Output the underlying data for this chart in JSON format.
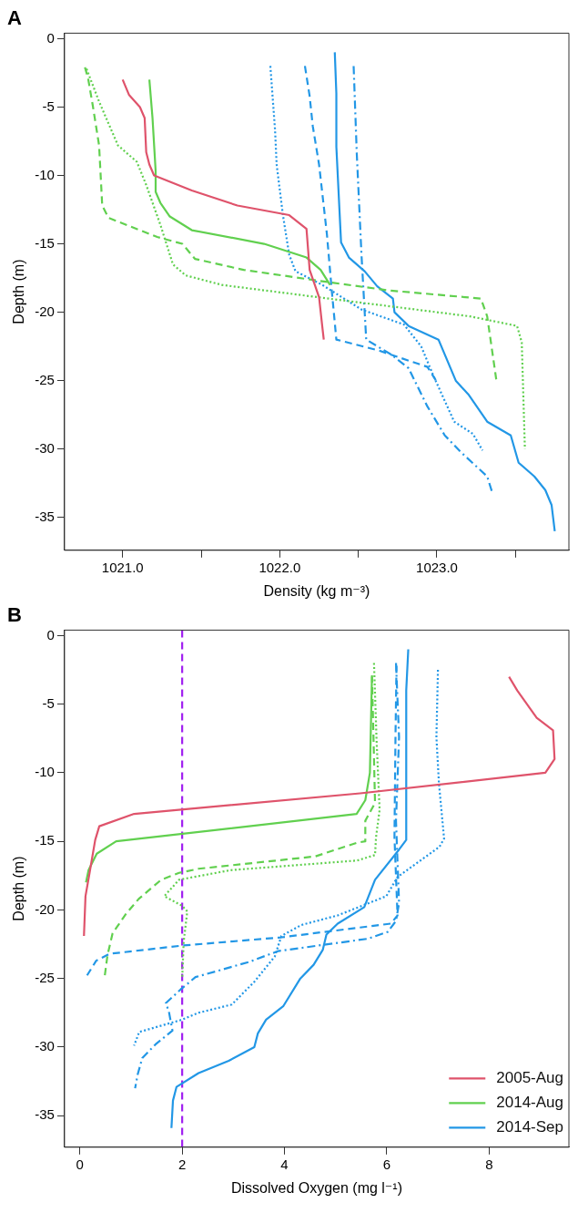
{
  "chart_data": [
    {
      "type": "line",
      "title": "A",
      "xlabel": "Density (kg m⁻³)",
      "ylabel": "Depth (m)",
      "xlim": [
        1020.63,
        1023.84
      ],
      "ylim": [
        -37.4,
        0.4
      ],
      "xticks": [
        {
          "value": 1021,
          "label": "1021.0"
        },
        {
          "value": 1021.5,
          "label": null
        },
        {
          "value": 1022,
          "label": "1022.0"
        },
        {
          "value": 1022.5,
          "label": null
        },
        {
          "value": 1023,
          "label": "1023.0"
        },
        {
          "value": 1023.5,
          "label": null
        }
      ],
      "yticks": [
        0,
        -5,
        -10,
        -15,
        -20,
        -25,
        -30,
        -35
      ],
      "grid": false,
      "marker": "none",
      "legend": false,
      "series": [
        {
          "color": "#df536b",
          "line_style": "solid",
          "x": [
            1021.0,
            1021.04,
            1021.11,
            1021.14,
            1021.15,
            1021.17,
            1021.2,
            1021.44,
            1021.73,
            1022.06,
            1022.17,
            1022.19,
            1022.25,
            1022.27,
            1022.28
          ],
          "values": [
            -3.0,
            -4.1,
            -5.0,
            -5.8,
            -8.3,
            -9.2,
            -10.0,
            -11.1,
            -12.2,
            -12.9,
            -13.9,
            -16.9,
            -18.9,
            -21.0,
            -22.0
          ]
        },
        {
          "color": "#61d04f",
          "line_style": "solid",
          "x": [
            1021.17,
            1021.19,
            1021.21,
            1021.21,
            1021.24,
            1021.3,
            1021.44,
            1021.9,
            1022.17,
            1022.26,
            1022.32
          ],
          "values": [
            -3.0,
            -5.8,
            -9.7,
            -11.2,
            -12.0,
            -13.0,
            -14.0,
            -15.0,
            -16.0,
            -16.9,
            -18.0
          ]
        },
        {
          "color": "#61d04f",
          "line_style": "dashed",
          "x": [
            1020.76,
            1020.78,
            1020.81,
            1020.85,
            1020.87,
            1020.91,
            1021.22,
            1021.38,
            1021.46,
            1021.77,
            1022.31,
            1022.69,
            1023.28,
            1023.32,
            1023.38
          ],
          "values": [
            -2.1,
            -2.9,
            -4.9,
            -7.8,
            -12.2,
            -13.1,
            -14.5,
            -15.0,
            -16.1,
            -16.9,
            -17.8,
            -18.4,
            -19.0,
            -20.3,
            -25.1
          ]
        },
        {
          "color": "#61d04f",
          "line_style": "dotted",
          "x": [
            1020.77,
            1020.85,
            1020.97,
            1021.09,
            1021.15,
            1021.24,
            1021.32,
            1021.4,
            1021.63,
            1022.31,
            1023.21,
            1023.51,
            1023.54,
            1023.56
          ],
          "values": [
            -2.2,
            -4.6,
            -7.8,
            -9.0,
            -10.7,
            -13.6,
            -16.5,
            -17.3,
            -18.0,
            -19.0,
            -20.3,
            -21.0,
            -22.2,
            -30.0
          ]
        },
        {
          "color": "#2297e6",
          "line_style": "solid",
          "x": [
            1022.35,
            1022.36,
            1022.36,
            1022.39,
            1022.44,
            1022.54,
            1022.62,
            1022.72,
            1022.73,
            1022.82,
            1023.01,
            1023.12,
            1023.2,
            1023.26,
            1023.32,
            1023.47,
            1023.52,
            1023.62,
            1023.69,
            1023.73,
            1023.75
          ],
          "values": [
            -1.0,
            -4.0,
            -7.9,
            -14.9,
            -16.0,
            -17.0,
            -18.1,
            -19.0,
            -20.0,
            -21.0,
            -22.0,
            -25.0,
            -26.0,
            -27.0,
            -28.0,
            -29.0,
            -31.0,
            -32.0,
            -33.0,
            -34.1,
            -36.0
          ]
        },
        {
          "color": "#2297e6",
          "line_style": "dotted",
          "x": [
            1021.94,
            1021.97,
            1021.98,
            1022.02,
            1022.06,
            1022.1,
            1022.27,
            1022.52,
            1022.79,
            1022.9,
            1022.98,
            1023.11,
            1023.23,
            1023.29
          ],
          "values": [
            -2.0,
            -6.7,
            -9.2,
            -12.9,
            -15.8,
            -17.0,
            -18.0,
            -19.8,
            -20.9,
            -22.5,
            -24.7,
            -28.0,
            -28.9,
            -30.1
          ]
        },
        {
          "color": "#2297e6",
          "line_style": "dashed",
          "x": [
            1022.16,
            1022.19,
            1022.21,
            1022.25,
            1022.3,
            1022.33,
            1022.36,
            1022.63,
            1022.94,
            1023.0
          ],
          "values": [
            -2.0,
            -4.2,
            -6.4,
            -9.2,
            -14.3,
            -18.3,
            -22.0,
            -22.8,
            -24.0,
            -25.1
          ]
        },
        {
          "color": "#2297e6",
          "line_style": "dashdot",
          "x": [
            1022.47,
            1022.49,
            1022.52,
            1022.55,
            1022.71,
            1022.82,
            1022.94,
            1023.05,
            1023.15,
            1023.32,
            1023.35
          ],
          "values": [
            -2.0,
            -8.4,
            -15.8,
            -22.0,
            -23.1,
            -24.1,
            -26.9,
            -29.0,
            -30.2,
            -32.0,
            -33.1
          ]
        }
      ]
    },
    {
      "type": "line",
      "title": "B",
      "xlabel": "Dissolved Oxygen (mg l⁻¹)",
      "ylabel": "Depth (m)",
      "xlim": [
        -0.3,
        9.56
      ],
      "ylim": [
        -37.3,
        0.4
      ],
      "xticks": [
        0,
        2,
        4,
        6,
        8
      ],
      "yticks": [
        0,
        -5,
        -10,
        -15,
        -20,
        -25,
        -30,
        -35
      ],
      "grid": false,
      "marker": "none",
      "legend": "bottom right",
      "ref_lines": [
        {
          "axis": "x",
          "value": 2,
          "color": "#a020f0",
          "line_style": "dashed"
        }
      ],
      "series": [
        {
          "name": "2005-Aug",
          "color": "#df536b",
          "line_style": "solid",
          "x": [
            8.39,
            8.55,
            8.74,
            8.93,
            9.25,
            9.28,
            9.1,
            5.48,
            1.06,
            0.38,
            0.3,
            0.19,
            0.11,
            0.08
          ],
          "values": [
            -3.0,
            -4.0,
            -5.0,
            -6.0,
            -6.9,
            -9.0,
            -10.0,
            -11.5,
            -13.0,
            -13.9,
            -14.9,
            -17.3,
            -19.0,
            -21.9
          ]
        },
        {
          "name": "2014-Aug",
          "color": "#61d04f",
          "line_style": "solid",
          "x": [
            5.71,
            5.67,
            5.58,
            5.41,
            0.71,
            0.33,
            0.17,
            0.12
          ],
          "values": [
            -3.0,
            -10.0,
            -12.0,
            -13.0,
            -15.0,
            -15.9,
            -17.1,
            -18.0
          ]
        },
        {
          "color": "#61d04f",
          "line_style": "dashed",
          "x": [
            5.71,
            5.74,
            5.77,
            5.58,
            5.58,
            5.42,
            4.6,
            2.32,
            1.94,
            1.59,
            1.15,
            0.9,
            0.64,
            0.54,
            0.48
          ],
          "values": [
            -2.9,
            -7.4,
            -12.2,
            -13.5,
            -15.0,
            -15.1,
            -16.1,
            -17.0,
            -17.3,
            -17.8,
            -19.2,
            -20.3,
            -21.7,
            -23.3,
            -25.0
          ]
        },
        {
          "color": "#61d04f",
          "line_style": "dotted",
          "x": [
            5.75,
            5.8,
            5.86,
            5.79,
            5.77,
            5.42,
            2.95,
            1.94,
            1.65,
            2.0,
            2.1,
            2.03,
            2.0
          ],
          "values": [
            -2.0,
            -7.6,
            -12.7,
            -14.7,
            -16.0,
            -16.4,
            -17.1,
            -17.8,
            -19.0,
            -19.7,
            -20.1,
            -22.3,
            -25.0
          ]
        },
        {
          "name": "2014-Sep",
          "color": "#2297e6",
          "line_style": "solid",
          "x": [
            6.42,
            6.38,
            6.38,
            6.24,
            5.77,
            5.56,
            5.04,
            4.82,
            4.75,
            4.57,
            4.31,
            3.98,
            3.64,
            3.48,
            3.41,
            2.91,
            2.32,
            1.89,
            1.82,
            1.79
          ],
          "values": [
            -1.0,
            -4.0,
            -14.9,
            -15.6,
            -17.8,
            -19.8,
            -21.0,
            -21.8,
            -22.9,
            -24.0,
            -25.0,
            -27.0,
            -28.0,
            -29.0,
            -30.0,
            -31.0,
            -31.9,
            -32.9,
            -33.9,
            -35.9
          ]
        },
        {
          "color": "#2297e6",
          "line_style": "dotted",
          "x": [
            7.0,
            6.97,
            7.02,
            7.12,
            7.03,
            6.21,
            5.99,
            5.04,
            4.33,
            3.94,
            3.81,
            3.42,
            2.97,
            2.32,
            2.0,
            1.16,
            1.06
          ],
          "values": [
            -2.5,
            -7.4,
            -10.8,
            -14.8,
            -15.4,
            -17.6,
            -19.0,
            -20.4,
            -21.1,
            -21.9,
            -23.4,
            -25.2,
            -26.9,
            -27.5,
            -28.0,
            -28.9,
            -29.9
          ]
        },
        {
          "color": "#2297e6",
          "line_style": "dashed",
          "x": [
            6.19,
            6.17,
            6.15,
            6.21,
            6.08,
            3.94,
            2.0,
            0.58,
            0.32,
            0.12
          ],
          "values": [
            -2.2,
            -7.4,
            -14.7,
            -20.4,
            -21.0,
            -22.0,
            -22.6,
            -23.2,
            -23.7,
            -24.9
          ]
        },
        {
          "color": "#2297e6",
          "line_style": "dashdot",
          "x": [
            6.18,
            6.24,
            6.18,
            6.24,
            6.18,
            6.02,
            5.63,
            3.88,
            3.3,
            2.26,
            1.97,
            1.68,
            1.74,
            1.81,
            1.48,
            1.22,
            1.13,
            1.08
          ],
          "values": [
            -2.0,
            -7.4,
            -13.5,
            -19.5,
            -20.8,
            -21.6,
            -22.1,
            -23.0,
            -23.8,
            -24.9,
            -25.8,
            -26.8,
            -27.4,
            -28.8,
            -29.8,
            -30.8,
            -32.0,
            -33.0
          ]
        }
      ]
    }
  ]
}
